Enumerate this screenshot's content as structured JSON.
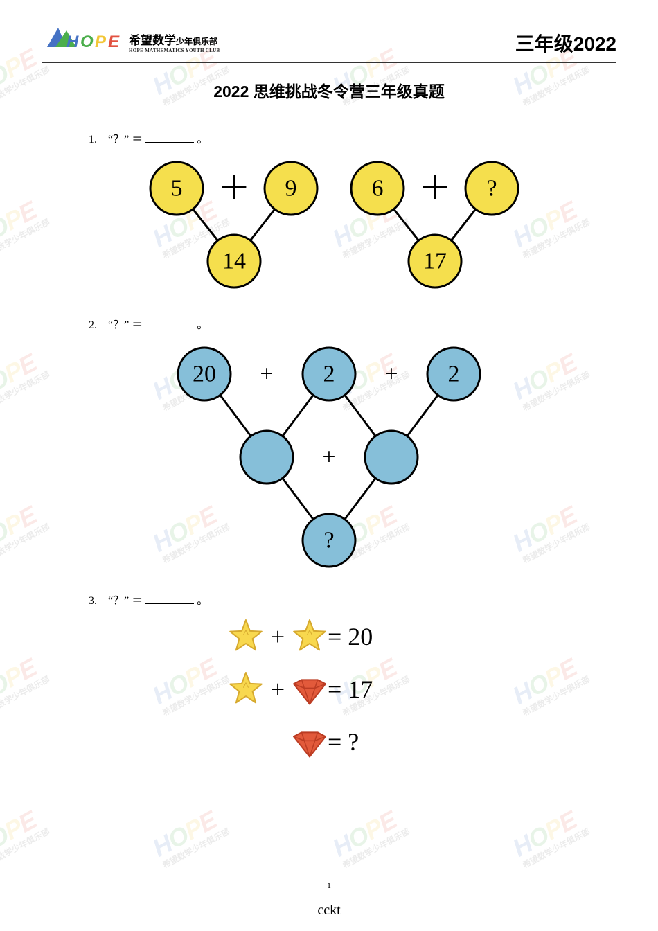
{
  "header": {
    "logo_cn_main": "希望数学",
    "logo_cn_small": "少年俱乐部",
    "logo_en": "HOPE MATHEMATICS YOUTH CLUB",
    "right_text": "三年级2022"
  },
  "title": "2022 思维挑战冬令营三年级真题",
  "problems": {
    "p1": {
      "num": "1.",
      "stem_prefix": "“？”",
      "stem_equals": "＝",
      "stem_suffix": "。",
      "circles": {
        "a": "5",
        "b": "9",
        "c": "14",
        "d": "6",
        "e": "?",
        "f": "17"
      },
      "plus": "＋",
      "colors": {
        "fill": "#f5df4d",
        "stroke": "#000000",
        "text": "#000000",
        "plus": "#000000"
      },
      "circle_r": 38,
      "stroke_w": 3,
      "font_size_num": 34,
      "font_size_plus": 48
    },
    "p2": {
      "num": "2.",
      "circles": {
        "a": "20",
        "b": "2",
        "c": "2",
        "d": "",
        "e": "",
        "f": "?"
      },
      "plus": "+",
      "colors": {
        "fill": "#86bfd9",
        "stroke": "#000000",
        "text": "#000000",
        "plus": "#000000"
      },
      "circle_r": 38,
      "stroke_w": 3,
      "font_size_num": 34,
      "font_size_plus": 34
    },
    "p3": {
      "num": "3.",
      "eq1_val": " = 20",
      "eq2_val": " = 17",
      "eq3_val": " = ?",
      "plus": " + ",
      "colors": {
        "star_fill": "#f8d84e",
        "star_stroke": "#d6a92e",
        "gem_fill": "#e25a3b",
        "gem_stroke": "#bb3c23",
        "text": "#000000"
      },
      "font_size": 36
    }
  },
  "page_number": "1",
  "footer_code": "cckt",
  "watermark": {
    "hope": "HOPE",
    "sub": "希望数学少年俱乐部"
  },
  "logo_colors": {
    "tri1": "#4572c4",
    "tri2": "#4cae4c",
    "h": "#4572c4",
    "o": "#4cae4c",
    "p": "#f2c636",
    "e": "#e25241"
  }
}
